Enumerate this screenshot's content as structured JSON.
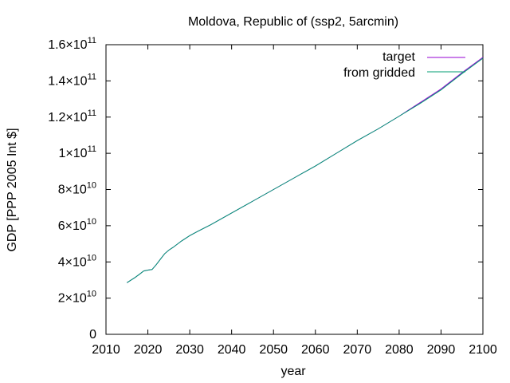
{
  "chart_data": {
    "type": "line",
    "title": "Moldova, Republic of (ssp2, 5arcmin)",
    "xlabel": "year",
    "ylabel": "GDP [PPP 2005 Int $]",
    "xlim": [
      2010,
      2100
    ],
    "ylim": [
      0,
      160000000000
    ],
    "x_ticks": [
      2010,
      2020,
      2030,
      2040,
      2050,
      2060,
      2070,
      2080,
      2090,
      2100
    ],
    "y_ticks": [
      {
        "value": 0,
        "mantissa": "0",
        "exponent": ""
      },
      {
        "value": 20000000000,
        "mantissa": "2×10",
        "exponent": "10"
      },
      {
        "value": 40000000000,
        "mantissa": "4×10",
        "exponent": "10"
      },
      {
        "value": 60000000000,
        "mantissa": "6×10",
        "exponent": "10"
      },
      {
        "value": 80000000000,
        "mantissa": "8×10",
        "exponent": "10"
      },
      {
        "value": 100000000000,
        "mantissa": "1×10",
        "exponent": "11"
      },
      {
        "value": 120000000000,
        "mantissa": "1.2×10",
        "exponent": "11"
      },
      {
        "value": 140000000000,
        "mantissa": "1.4×10",
        "exponent": "11"
      },
      {
        "value": 160000000000,
        "mantissa": "1.6×10",
        "exponent": "11"
      }
    ],
    "grid": false,
    "legend_position": "top-right",
    "series": [
      {
        "name": "target",
        "color": "#9400d3",
        "x": [
          2015,
          2016,
          2017,
          2018,
          2019,
          2020,
          2021,
          2022,
          2023,
          2024,
          2025,
          2026,
          2028,
          2030,
          2032,
          2035,
          2040,
          2045,
          2050,
          2055,
          2060,
          2065,
          2070,
          2075,
          2080,
          2085,
          2090,
          2095,
          2100
        ],
        "y": [
          28500000000,
          30000000000,
          31500000000,
          33200000000,
          35000000000,
          35500000000,
          35800000000,
          38500000000,
          41500000000,
          44500000000,
          46500000000,
          48000000000,
          51500000000,
          54500000000,
          57000000000,
          60500000000,
          67000000000,
          73500000000,
          80000000000,
          86500000000,
          93000000000,
          100000000000,
          107000000000,
          113500000000,
          120500000000,
          128000000000,
          135500000000,
          144500000000,
          153000000000
        ]
      },
      {
        "name": "from gridded",
        "color": "#009e73",
        "x": [
          2015,
          2016,
          2017,
          2018,
          2019,
          2020,
          2021,
          2022,
          2023,
          2024,
          2025,
          2026,
          2028,
          2030,
          2032,
          2035,
          2040,
          2045,
          2050,
          2055,
          2060,
          2065,
          2070,
          2075,
          2080,
          2085,
          2090,
          2095,
          2100
        ],
        "y": [
          28500000000,
          30000000000,
          31500000000,
          33200000000,
          35000000000,
          35500000000,
          35800000000,
          38500000000,
          41500000000,
          44500000000,
          46500000000,
          48000000000,
          51500000000,
          54500000000,
          57000000000,
          60500000000,
          67000000000,
          73500000000,
          80000000000,
          86500000000,
          93000000000,
          100000000000,
          107000000000,
          113500000000,
          120500000000,
          127500000000,
          135000000000,
          144000000000,
          152500000000
        ]
      }
    ]
  }
}
